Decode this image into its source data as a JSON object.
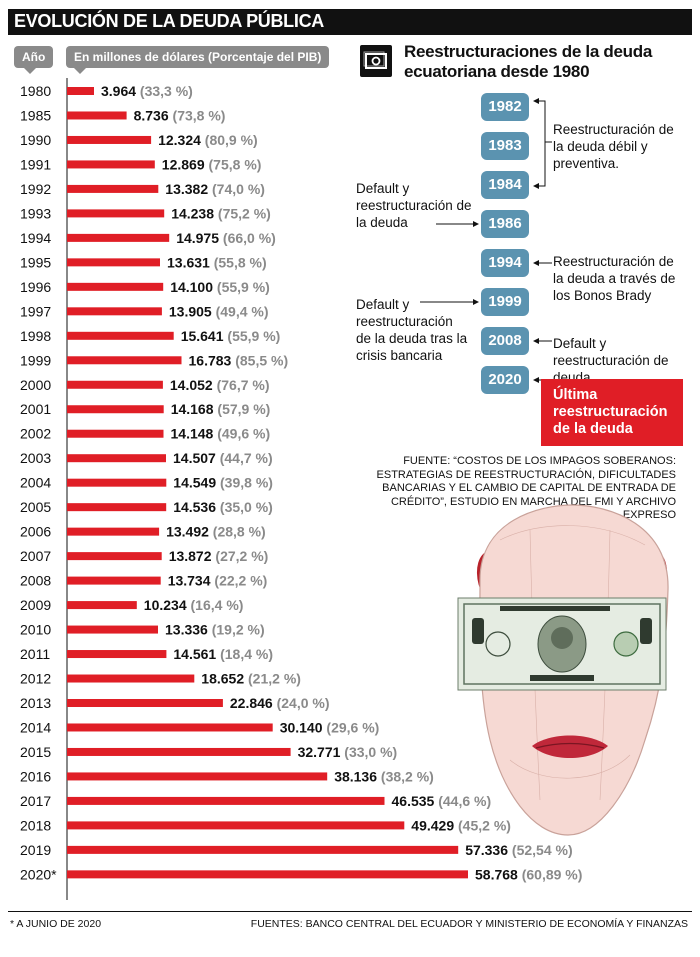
{
  "title": "EVOLUCIÓN DE LA DEUDA PÚBLICA",
  "year_header": "Año",
  "unit_header": "En millones de dólares (Porcentaje del PIB)",
  "chart_data": {
    "type": "bar",
    "orientation": "horizontal",
    "categories": [
      "1980",
      "1985",
      "1990",
      "1991",
      "1992",
      "1993",
      "1994",
      "1995",
      "1996",
      "1997",
      "1998",
      "1999",
      "2000",
      "2001",
      "2002",
      "2003",
      "2004",
      "2005",
      "2006",
      "2007",
      "2008",
      "2009",
      "2010",
      "2011",
      "2012",
      "2013",
      "2014",
      "2015",
      "2016",
      "2017",
      "2018",
      "2019",
      "2020*"
    ],
    "series": [
      {
        "values": [
          3964,
          8736,
          12324,
          12869,
          13382,
          14238,
          14975,
          13631,
          14100,
          13905,
          15641,
          16783,
          14052,
          14168,
          14148,
          14507,
          14549,
          14536,
          13492,
          13872,
          13734,
          10234,
          13336,
          14561,
          18652,
          22846,
          30140,
          32771,
          38136,
          46535,
          49429,
          57336,
          58768
        ],
        "value_labels": [
          "3.964",
          "8.736",
          "12.324",
          "12.869",
          "13.382",
          "14.238",
          "14.975",
          "13.631",
          "14.100",
          "13.905",
          "15.641",
          "16.783",
          "14.052",
          "14.168",
          "14.148",
          "14.507",
          "14.549",
          "14.536",
          "13.492",
          "13.872",
          "13.734",
          "10.234",
          "13.336",
          "14.561",
          "18.652",
          "22.846",
          "30.140",
          "32.771",
          "38.136",
          "46.535",
          "49.429",
          "57.336",
          "58.768"
        ],
        "pct_labels": [
          "(33,3 %)",
          "(73,8 %)",
          "(80,9 %)",
          "(75,8 %)",
          "(74,0 %)",
          "(75,2 %)",
          "(66,0 %)",
          "(55,8 %)",
          "(55,9 %)",
          "(49,4 %)",
          "(55,9 %)",
          "(85,5 %)",
          "(76,7 %)",
          "(57,9 %)",
          "(49,6 %)",
          "(44,7 %)",
          "(39,8 %)",
          "(35,0 %)",
          "(28,8 %)",
          "(27,2 %)",
          "(22,2 %)",
          "(16,4 %)",
          "(19,2 %)",
          "(18,4 %)",
          "(21,2 %)",
          "(24,0 %)",
          "(29,6 %)",
          "(33,0 %)",
          "(38,2 %)",
          "(44,6 %)",
          "(45,2 %)",
          "(52,54 %)",
          "(60,89 %)"
        ],
        "color": "#e01e26"
      }
    ]
  },
  "restructuring": {
    "title": "Reestructuraciones de la deuda ecuatoriana desde 1980",
    "years": [
      "1982",
      "1983",
      "1984",
      "1986",
      "1994",
      "1999",
      "2008",
      "2020"
    ],
    "notes": {
      "n1982_84": "Reestructuración de la deuda débil y preventiva.",
      "n1986": "Default y reestructuración de la deuda",
      "n1994": "Reestructuración de la deuda a través de los Bonos Brady",
      "n1999": "Default y reestructuración de la deuda tras la crisis bancaria",
      "n2008": "Default y reestructuración de deuda",
      "n2020": "Última reestructuración de la deuda"
    },
    "box_color": "#5b93b0",
    "highlight_color": "#e01e26"
  },
  "source_note": "FUENTE: “COSTOS DE LOS IMPAGOS SOBERANOS: ESTRATEGIAS DE REESTRUCTURACIÓN, DIFICULTADES BANCARIAS Y EL CAMBIO DE CAPITAL DE ENTRADA DE CRÉDITO”, ESTUDIO EN MARCHA DEL FMI Y ARCHIVO EXPRESO",
  "footnote": "* A JUNIO DE 2020",
  "footer_sources": "FUENTES: BANCO CENTRAL DEL ECUADOR Y MINISTERIO DE ECONOMÍA Y FINANZAS"
}
